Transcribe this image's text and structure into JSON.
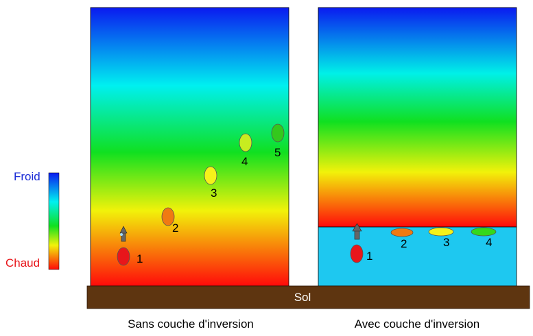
{
  "legend": {
    "cold_label": "Froid",
    "warm_label": "Chaud",
    "cold_color": "#1a2bd6",
    "warm_color": "#e8161b"
  },
  "ground": {
    "label": "Sol",
    "color": "#5e3510"
  },
  "panels": [
    {
      "caption": "Sans couche d'inversion",
      "parcels": [
        {
          "label": "1",
          "color": "#e8161b"
        },
        {
          "label": "2",
          "color": "#f07a12"
        },
        {
          "label": "3",
          "color": "#f5f21a"
        },
        {
          "label": "4",
          "color": "#c8ec20"
        },
        {
          "label": "5",
          "color": "#34c81c"
        }
      ]
    },
    {
      "caption": "Avec couche d'inversion",
      "inversion_color": "#1ec8f0",
      "parcels": [
        {
          "label": "1",
          "color": "#e8161b"
        },
        {
          "label": "2",
          "color": "#f07a12"
        },
        {
          "label": "3",
          "color": "#f5f21a"
        },
        {
          "label": "4",
          "color": "#34d81c"
        }
      ]
    }
  ]
}
